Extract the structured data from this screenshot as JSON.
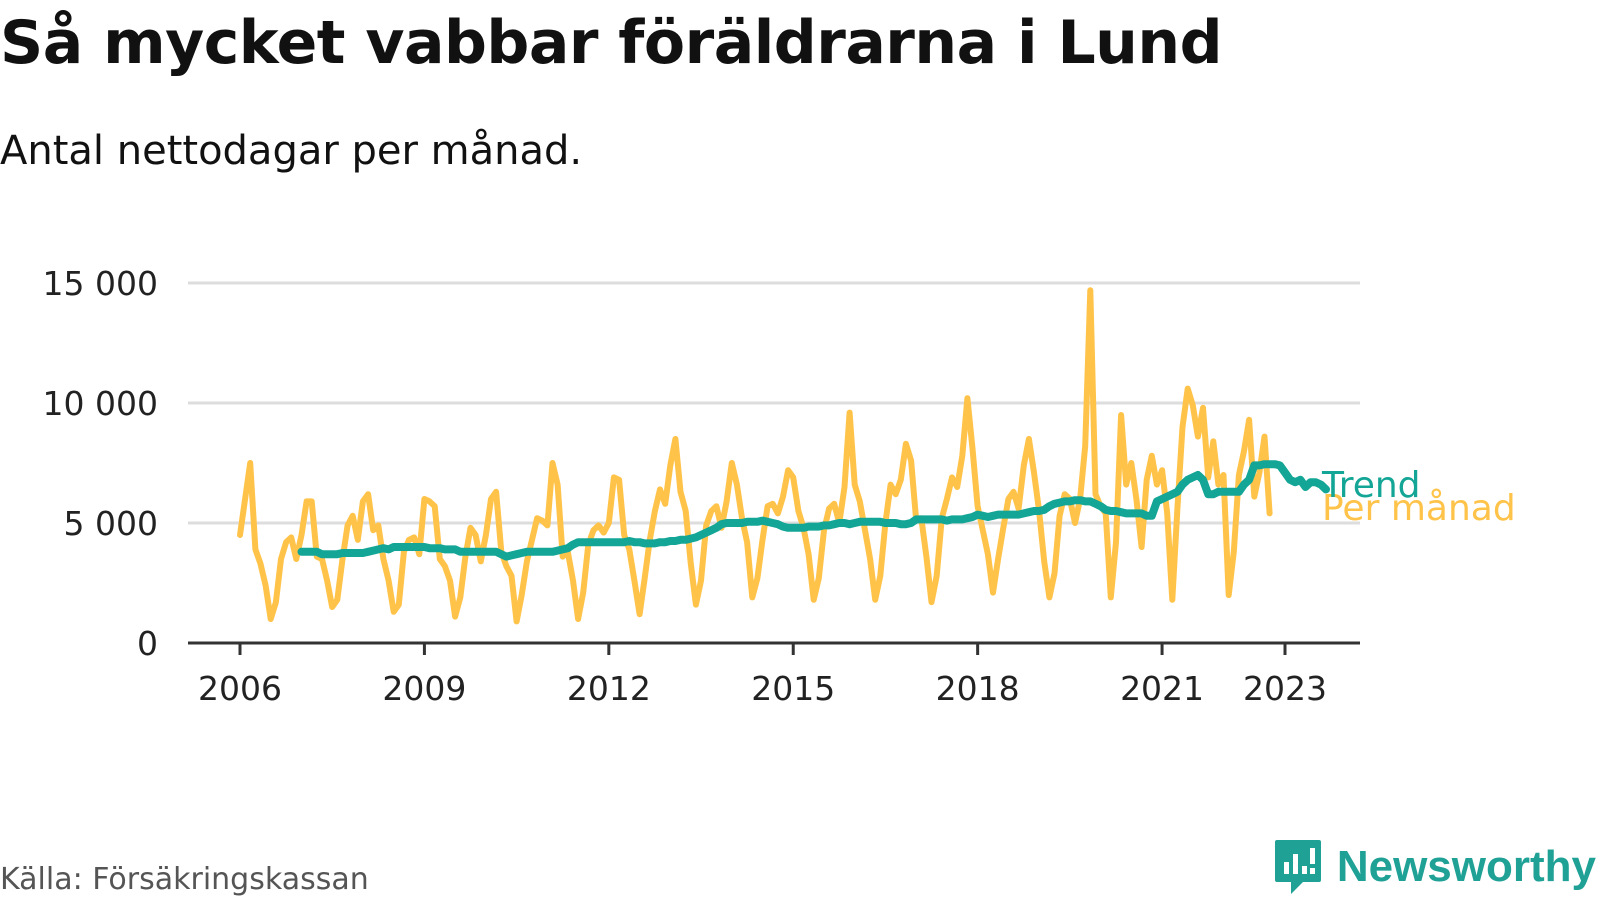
{
  "header": {
    "title": "Så mycket vabbar föräldrarna i Lund",
    "subtitle": "Antal nettodagar per månad."
  },
  "footer": {
    "source": "Källa: Försäkringskassan",
    "brand": "Newsworthy"
  },
  "colors": {
    "monthly": "#ffc34a",
    "trend": "#13a595",
    "grid": "#dddddd",
    "axis": "#333333",
    "brand": "#1fa196"
  },
  "chart_data": {
    "type": "line",
    "title": "Så mycket vabbar föräldrarna i Lund",
    "subtitle": "Antal nettodagar per månad.",
    "ylim": [
      0,
      15000
    ],
    "y_ticks": [
      0,
      5000,
      10000,
      15000
    ],
    "y_tick_labels": [
      "0",
      "5 000",
      "10 000",
      "15 000"
    ],
    "x_ticks": [
      2006,
      2009,
      2012,
      2015,
      2018,
      2021,
      2023
    ],
    "x_tick_labels": [
      "2006",
      "2009",
      "2012",
      "2015",
      "2018",
      "2021",
      "2023"
    ],
    "grid": true,
    "legend": "direct labels at line ends",
    "start": "2006-01",
    "series": [
      {
        "name": "Per månad",
        "color": "#ffc34a",
        "values": [
          4500,
          6000,
          7500,
          3900,
          3300,
          2400,
          1000,
          1700,
          3500,
          4200,
          4400,
          3500,
          4500,
          5900,
          5900,
          3600,
          3500,
          2600,
          1500,
          1800,
          3500,
          4900,
          5300,
          4300,
          5900,
          6200,
          4700,
          4900,
          3500,
          2600,
          1300,
          1600,
          3800,
          4300,
          4400,
          3700,
          6000,
          5900,
          5700,
          3500,
          3200,
          2600,
          1100,
          1900,
          3600,
          4800,
          4500,
          3400,
          4500,
          6000,
          6300,
          3800,
          3200,
          2800,
          900,
          2000,
          3400,
          4300,
          5200,
          5100,
          4900,
          7500,
          6600,
          3600,
          3800,
          2600,
          1000,
          2100,
          4100,
          4700,
          4900,
          4600,
          5000,
          6900,
          6800,
          4500,
          3900,
          2600,
          1200,
          2700,
          4300,
          5500,
          6400,
          5800,
          7400,
          8500,
          6300,
          5500,
          3300,
          1600,
          2600,
          4900,
          5500,
          5700,
          4800,
          5900,
          7500,
          6600,
          5200,
          4200,
          1900,
          2700,
          4300,
          5700,
          5800,
          5400,
          6100,
          7200,
          6900,
          5500,
          4800,
          3700,
          1800,
          2700,
          4700,
          5600,
          5800,
          5000,
          6500,
          9600,
          6600,
          5900,
          4700,
          3500,
          1800,
          2800,
          5000,
          6600,
          6200,
          6800,
          8300,
          7600,
          5100,
          5200,
          3600,
          1700,
          2800,
          5200,
          6000,
          6900,
          6500,
          7800,
          10200,
          8100,
          5700,
          4700,
          3700,
          2100,
          3500,
          4800,
          6000,
          6300,
          5600,
          7400,
          8500,
          7100,
          5500,
          3400,
          1900,
          2900,
          5300,
          6200,
          6000,
          5000,
          6000,
          8200,
          14700,
          6200,
          5700,
          5400,
          1900,
          4200,
          9500,
          6600,
          7500,
          6000,
          4000,
          6800,
          7800,
          6600,
          7200,
          5400,
          1800,
          5600,
          9000,
          10600,
          9900,
          8600,
          9800,
          6900,
          8400,
          6600,
          7000,
          2000,
          3800,
          7000,
          8000,
          9300,
          6100,
          7100,
          8600,
          5400
        ]
      },
      {
        "name": "Trend",
        "color": "#13a595",
        "start": "2007-01",
        "values": [
          3800,
          3800,
          3800,
          3800,
          3700,
          3700,
          3700,
          3700,
          3750,
          3750,
          3750,
          3750,
          3750,
          3800,
          3850,
          3900,
          3950,
          3900,
          4000,
          4000,
          4000,
          4000,
          4000,
          4000,
          4000,
          3950,
          3950,
          3950,
          3900,
          3900,
          3900,
          3800,
          3800,
          3800,
          3800,
          3800,
          3800,
          3800,
          3800,
          3700,
          3600,
          3650,
          3700,
          3750,
          3800,
          3800,
          3800,
          3800,
          3800,
          3800,
          3850,
          3900,
          3950,
          4100,
          4200,
          4200,
          4200,
          4200,
          4200,
          4200,
          4200,
          4200,
          4200,
          4200,
          4250,
          4200,
          4200,
          4150,
          4150,
          4150,
          4200,
          4200,
          4250,
          4250,
          4300,
          4300,
          4350,
          4400,
          4500,
          4600,
          4700,
          4800,
          4950,
          5000,
          5000,
          5000,
          5000,
          5050,
          5050,
          5050,
          5100,
          5050,
          5000,
          4950,
          4850,
          4800,
          4800,
          4800,
          4800,
          4850,
          4850,
          4850,
          4900,
          4900,
          4950,
          5000,
          5000,
          4950,
          5000,
          5050,
          5050,
          5050,
          5050,
          5050,
          5000,
          5000,
          5000,
          4950,
          4950,
          5000,
          5150,
          5150,
          5150,
          5150,
          5150,
          5150,
          5100,
          5150,
          5150,
          5150,
          5200,
          5250,
          5350,
          5300,
          5250,
          5300,
          5350,
          5350,
          5350,
          5350,
          5350,
          5400,
          5450,
          5500,
          5500,
          5550,
          5700,
          5800,
          5850,
          5900,
          5900,
          5950,
          5950,
          5900,
          5900,
          5800,
          5700,
          5550,
          5500,
          5500,
          5450,
          5400,
          5400,
          5400,
          5400,
          5300,
          5300,
          5900,
          6000,
          6100,
          6200,
          6300,
          6600,
          6800,
          6900,
          7000,
          6800,
          6200,
          6200,
          6300,
          6300,
          6300,
          6300,
          6300,
          6600,
          6800,
          7400,
          7400,
          7450,
          7450,
          7450,
          7400,
          7100,
          6800,
          6700,
          6800,
          6500,
          6700,
          6700,
          6600,
          6400
        ]
      }
    ]
  }
}
